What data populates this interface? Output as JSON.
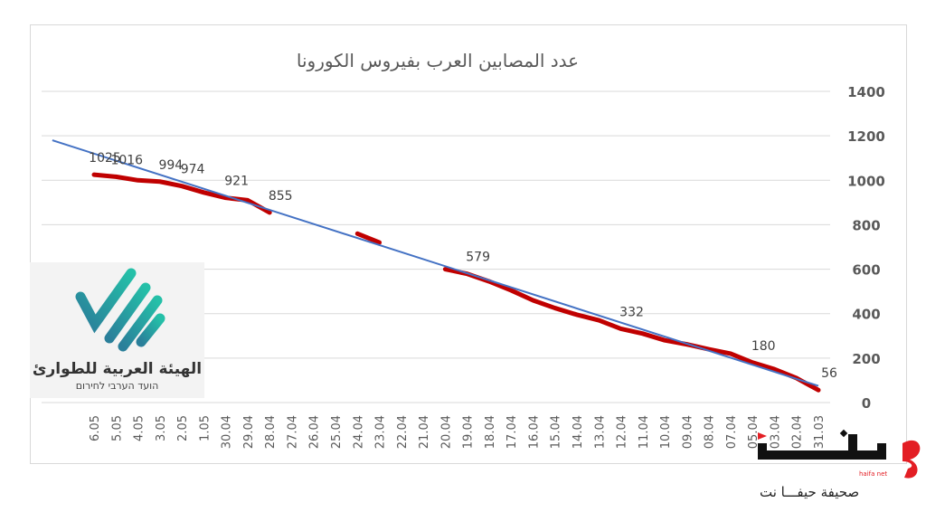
{
  "chart_data": {
    "type": "line",
    "title": "عدد المصابين العرب بفيروس الكورونا",
    "xlabel": "",
    "ylabel": "",
    "ylim": [
      0,
      1400
    ],
    "yticks": [
      0,
      200,
      400,
      600,
      800,
      1000,
      1200,
      1400
    ],
    "y_axis_side": "right",
    "grid": true,
    "legend": "none",
    "categories": [
      "6.05",
      "5.05",
      "4.05",
      "3.05",
      "2.05",
      "1.05",
      "30.04",
      "29.04",
      "28.04",
      "27.04",
      "26.04",
      "25.04",
      "24.04",
      "23.04",
      "22.04",
      "21.04",
      "20.04",
      "19.04",
      "18.04",
      "17.04",
      "16.04",
      "15.04",
      "14.04",
      "13.04",
      "12.04",
      "11.04",
      "10.04",
      "09.04",
      "08.04",
      "07.04",
      "05.04",
      "03.04",
      "02.04",
      "31.03"
    ],
    "series": [
      {
        "color": "#c00000",
        "values": [
          1025,
          1016,
          1000,
          994,
          974,
          945,
          921,
          910,
          855,
          null,
          null,
          null,
          760,
          720,
          null,
          null,
          600,
          579,
          545,
          505,
          460,
          425,
          395,
          370,
          332,
          310,
          280,
          262,
          240,
          220,
          180,
          150,
          110,
          56
        ],
        "data_labels": {
          "0": "1025",
          "1": "1016",
          "3": "994",
          "4": "974",
          "6": "921",
          "8": "855",
          "17": "579",
          "24": "332",
          "30": "180",
          "33": "56"
        }
      }
    ],
    "trendline": {
      "type": "linear",
      "color": "#4472c4",
      "start_value": 1120,
      "end_value": 75
    }
  },
  "logos": {
    "emergency_committee_ar": "الهيئة العربية للطوارئ",
    "emergency_committee_he": "הועד הערבי לחירום",
    "haifa_brand": "حيفا",
    "haifa_tag": "haifa net",
    "haifa_sub": "صحيفة حيفـــا نت",
    "teal": "#1fa89b",
    "red": "#e31e24"
  }
}
